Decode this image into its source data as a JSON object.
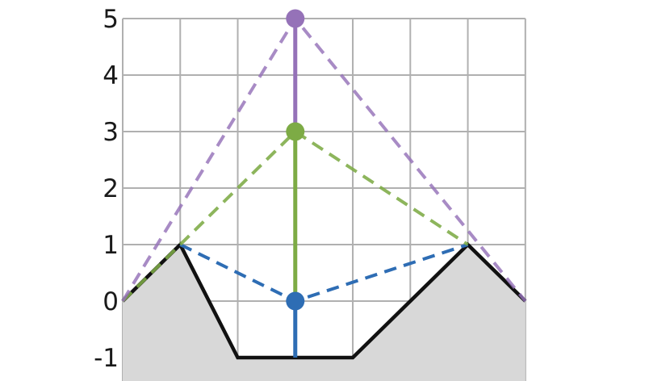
{
  "figure": {
    "title": "",
    "background_color": "#ffffff"
  },
  "chart_data": {
    "type": "line",
    "title": "",
    "xlabel": "",
    "ylabel": "",
    "x_range": [
      0,
      7
    ],
    "y_range": [
      -1.42,
      5.3
    ],
    "grid": true,
    "legend": "none",
    "y_ticks": [
      5,
      4,
      3,
      2,
      1,
      0,
      -1
    ],
    "colors": {
      "grid": "#b0b0b0",
      "terrain_line": "#111111",
      "terrain_fill": "#d8d8d8",
      "blue": "#2e6db4",
      "green": "#7dab45",
      "purple": "#9572b8",
      "tick_label": "#1a1a1a"
    },
    "terrain": {
      "name": "piecewise-linear-terrain",
      "points": [
        [
          0,
          0
        ],
        [
          1,
          1
        ],
        [
          2,
          -1
        ],
        [
          4,
          -1
        ],
        [
          6,
          1
        ],
        [
          7,
          0
        ]
      ],
      "line_color": "#111111",
      "line_width": 4.5,
      "fill_below_color": "#d8d8d8"
    },
    "dashed_series": [
      {
        "name": "blue-cone",
        "color": "#2e6db4",
        "opacity": 1.0,
        "points": [
          [
            1,
            1
          ],
          [
            3,
            0
          ],
          [
            6,
            1
          ]
        ]
      },
      {
        "name": "green-cone",
        "color": "#7dab45",
        "opacity": 0.88,
        "points": [
          [
            0,
            0
          ],
          [
            3,
            3
          ],
          [
            6,
            1
          ]
        ]
      },
      {
        "name": "purple-cone",
        "color": "#9572b8",
        "opacity": 0.82,
        "points": [
          [
            0,
            0
          ],
          [
            3,
            5
          ],
          [
            7,
            0
          ]
        ]
      }
    ],
    "vertical_segments": [
      {
        "name": "blue-stem",
        "x": 3,
        "y_from": -1,
        "y_to": 0,
        "color": "#2e6db4"
      },
      {
        "name": "green-stem",
        "x": 3,
        "y_from": 0,
        "y_to": 3,
        "color": "#7dab45"
      },
      {
        "name": "purple-stem",
        "x": 3,
        "y_from": 3,
        "y_to": 5,
        "color": "#9572b8"
      }
    ],
    "markers": [
      {
        "name": "blue-point",
        "x": 3,
        "y": 0,
        "color": "#2e6db4"
      },
      {
        "name": "green-point",
        "x": 3,
        "y": 3,
        "color": "#7dab45"
      },
      {
        "name": "purple-point",
        "x": 3,
        "y": 5,
        "color": "#9572b8"
      }
    ]
  }
}
